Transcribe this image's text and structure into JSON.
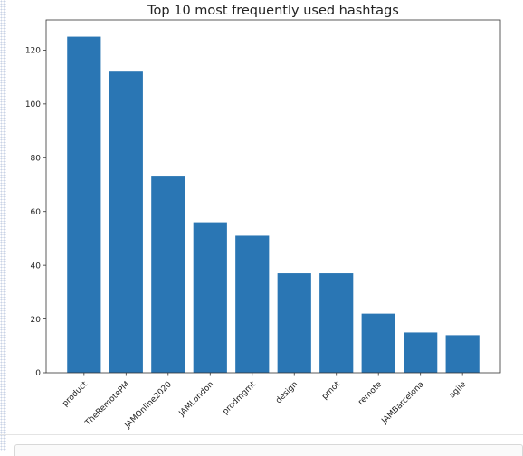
{
  "chart_data": {
    "type": "bar",
    "title": "Top 10 most frequently used hashtags",
    "xlabel": "",
    "ylabel": "",
    "categories": [
      "product",
      "TheRemotePM",
      "JAMOnline2020",
      "JAMLondon",
      "prodmgmt",
      "design",
      "pmot",
      "remote",
      "JAMBarcelona",
      "agile"
    ],
    "values": [
      125,
      112,
      73,
      56,
      51,
      37,
      37,
      22,
      15,
      14
    ],
    "ylim": [
      0,
      131.25
    ],
    "yticks": [
      0,
      20,
      40,
      60,
      80,
      100,
      120
    ],
    "ytick_labels": [
      "0",
      "20",
      "40",
      "60",
      "80",
      "100",
      "120"
    ],
    "bar_color": "#2a76b4",
    "grid": false,
    "xtick_rotation": "45 degrees"
  }
}
